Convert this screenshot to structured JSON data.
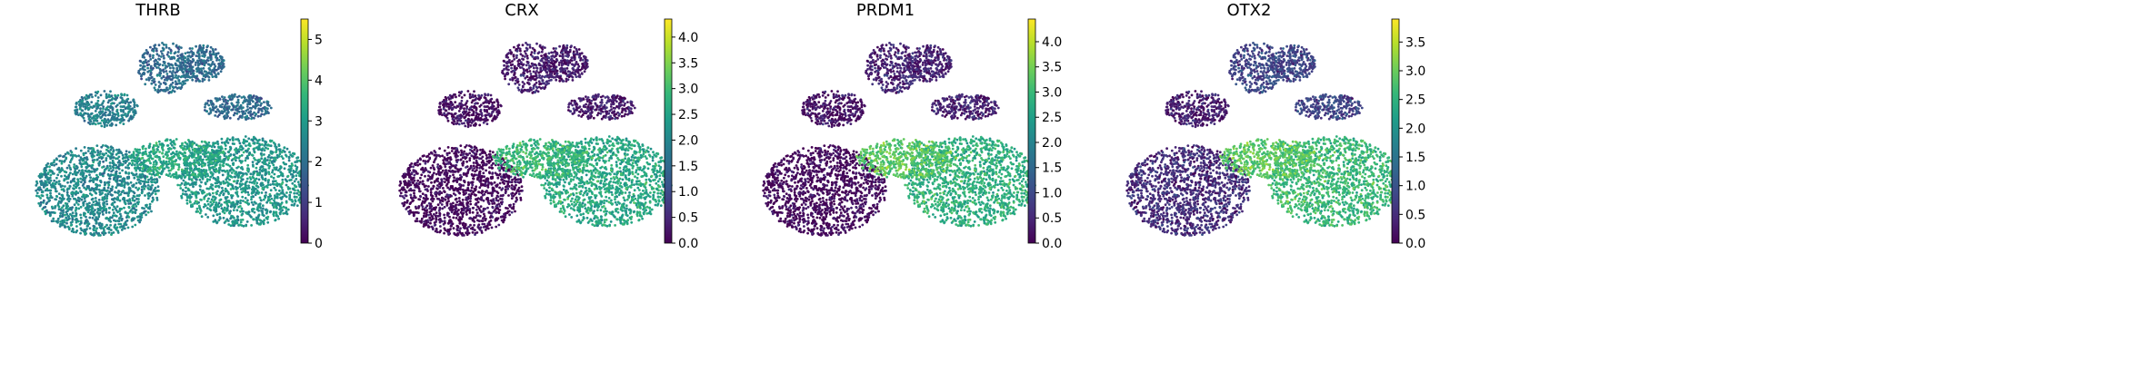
{
  "figure": {
    "background": "#ffffff"
  },
  "colormap": {
    "name": "viridis",
    "stops": [
      "#440154",
      "#482878",
      "#3e4989",
      "#31688e",
      "#26828e",
      "#1f9e89",
      "#35b779",
      "#6ece58",
      "#b5de2b",
      "#fde725"
    ]
  },
  "chart_data": [
    {
      "type": "scatter",
      "title": "THRB",
      "xlabel": "",
      "ylabel": "",
      "color_range": [
        0,
        5.5
      ],
      "colorbar_ticks": [
        "0",
        "1",
        "2",
        "3",
        "4",
        "5"
      ],
      "colorbar_tick_values": [
        0,
        1,
        2,
        3,
        4,
        5
      ],
      "region_values": {
        "left_lobe": 2.6,
        "right_lobe": 2.9,
        "center": 3.3,
        "upper_branches": 1.9,
        "mid_left_arm": 2.4
      }
    },
    {
      "type": "scatter",
      "title": "CRX",
      "xlabel": "",
      "ylabel": "",
      "color_range": [
        0,
        4.35
      ],
      "colorbar_ticks": [
        "0.0",
        "0.5",
        "1.0",
        "1.5",
        "2.0",
        "2.5",
        "3.0",
        "3.5",
        "4.0"
      ],
      "colorbar_tick_values": [
        0,
        0.5,
        1.0,
        1.5,
        2.0,
        2.5,
        3.0,
        3.5,
        4.0
      ],
      "region_values": {
        "left_lobe": 0.05,
        "right_lobe": 2.6,
        "center": 2.9,
        "upper_branches": 0.3,
        "mid_left_arm": 0.15
      }
    },
    {
      "type": "scatter",
      "title": "PRDM1",
      "xlabel": "",
      "ylabel": "",
      "color_range": [
        0,
        4.45
      ],
      "colorbar_ticks": [
        "0.0",
        "0.5",
        "1.0",
        "1.5",
        "2.0",
        "2.5",
        "3.0",
        "3.5",
        "4.0"
      ],
      "colorbar_tick_values": [
        0,
        0.5,
        1.0,
        1.5,
        2.0,
        2.5,
        3.0,
        3.5,
        4.0
      ],
      "region_values": {
        "left_lobe": 0.05,
        "right_lobe": 2.8,
        "center": 3.3,
        "upper_branches": 0.4,
        "mid_left_arm": 0.2
      }
    },
    {
      "type": "scatter",
      "title": "OTX2",
      "xlabel": "",
      "ylabel": "",
      "color_range": [
        0,
        3.9
      ],
      "colorbar_ticks": [
        "0.0",
        "0.5",
        "1.0",
        "1.5",
        "2.0",
        "2.5",
        "3.0",
        "3.5"
      ],
      "colorbar_tick_values": [
        0,
        0.5,
        1.0,
        1.5,
        2.0,
        2.5,
        3.0,
        3.5
      ],
      "region_values": {
        "left_lobe": 0.5,
        "right_lobe": 2.6,
        "center": 2.9,
        "upper_branches": 0.8,
        "mid_left_arm": 0.3
      }
    }
  ]
}
